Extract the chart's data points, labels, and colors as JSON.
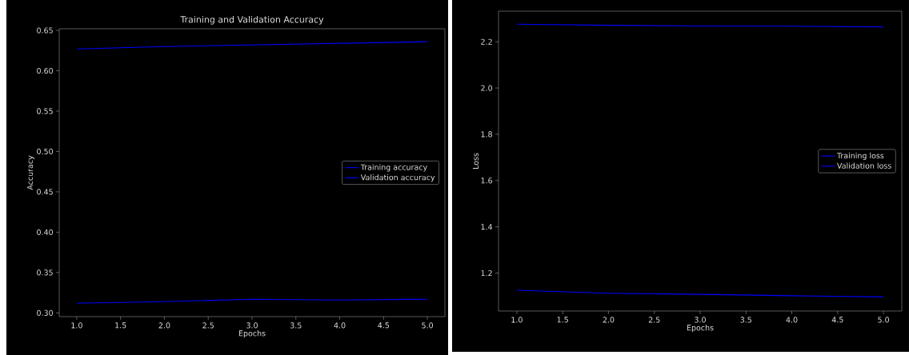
{
  "chart_data": [
    {
      "type": "line",
      "title": "Training and Validation Accuracy",
      "xlabel": "Epochs",
      "ylabel": "Accuracy",
      "x": [
        1,
        2,
        3,
        4,
        5
      ],
      "series": [
        {
          "name": "Training accuracy",
          "color": "#0000ff",
          "values": [
            0.627,
            0.63,
            0.632,
            0.634,
            0.636
          ]
        },
        {
          "name": "Validation accuracy",
          "color": "#0000ff",
          "values": [
            0.312,
            0.314,
            0.317,
            0.316,
            0.317
          ]
        }
      ],
      "xlim": [
        0.8,
        5.2
      ],
      "ylim": [
        0.2954,
        0.652
      ],
      "xticks": [
        {
          "value": 1,
          "label": "1.0"
        },
        {
          "value": 1.5,
          "label": "1.5"
        },
        {
          "value": 2,
          "label": "2.0"
        },
        {
          "value": 2.5,
          "label": "2.5"
        },
        {
          "value": 3,
          "label": "3.0"
        },
        {
          "value": 3.5,
          "label": "3.5"
        },
        {
          "value": 4,
          "label": "4.0"
        },
        {
          "value": 4.5,
          "label": "4.5"
        },
        {
          "value": 5,
          "label": "5.0"
        }
      ],
      "yticks": [
        {
          "value": 0.3,
          "label": "0.30"
        },
        {
          "value": 0.35,
          "label": "0.35"
        },
        {
          "value": 0.4,
          "label": "0.40"
        },
        {
          "value": 0.45,
          "label": "0.45"
        },
        {
          "value": 0.5,
          "label": "0.50"
        },
        {
          "value": 0.55,
          "label": "0.55"
        },
        {
          "value": 0.6,
          "label": "0.60"
        },
        {
          "value": 0.65,
          "label": "0.65"
        }
      ],
      "legend": "right",
      "line_style": "solid"
    },
    {
      "type": "line",
      "xlabel": "Epochs",
      "ylabel": "Loss",
      "x": [
        1,
        2,
        3,
        4,
        5
      ],
      "series": [
        {
          "name": "Training loss",
          "color": "#0000ff",
          "values": [
            2.276,
            2.271,
            2.268,
            2.267,
            2.264
          ]
        },
        {
          "name": "Validation loss",
          "color": "#0000ff",
          "values": [
            1.126,
            1.113,
            1.108,
            1.102,
            1.097
          ]
        }
      ],
      "xlim": [
        0.8,
        5.2
      ],
      "ylim": [
        1.036,
        2.332
      ],
      "xticks": [
        {
          "value": 1,
          "label": "1.0"
        },
        {
          "value": 1.5,
          "label": "1.5"
        },
        {
          "value": 2,
          "label": "2.0"
        },
        {
          "value": 2.5,
          "label": "2.5"
        },
        {
          "value": 3,
          "label": "3.0"
        },
        {
          "value": 3.5,
          "label": "3.5"
        },
        {
          "value": 4,
          "label": "4.0"
        },
        {
          "value": 4.5,
          "label": "4.5"
        },
        {
          "value": 5,
          "label": "5.0"
        }
      ],
      "yticks": [
        {
          "value": 1.2,
          "label": "1.2"
        },
        {
          "value": 1.4,
          "label": "1.4"
        },
        {
          "value": 1.6,
          "label": "1.6"
        },
        {
          "value": 1.8,
          "label": "1.8"
        },
        {
          "value": 2.0,
          "label": "2.0"
        },
        {
          "value": 2.2,
          "label": "2.2"
        }
      ],
      "legend": "right",
      "line_style": "solid"
    }
  ]
}
